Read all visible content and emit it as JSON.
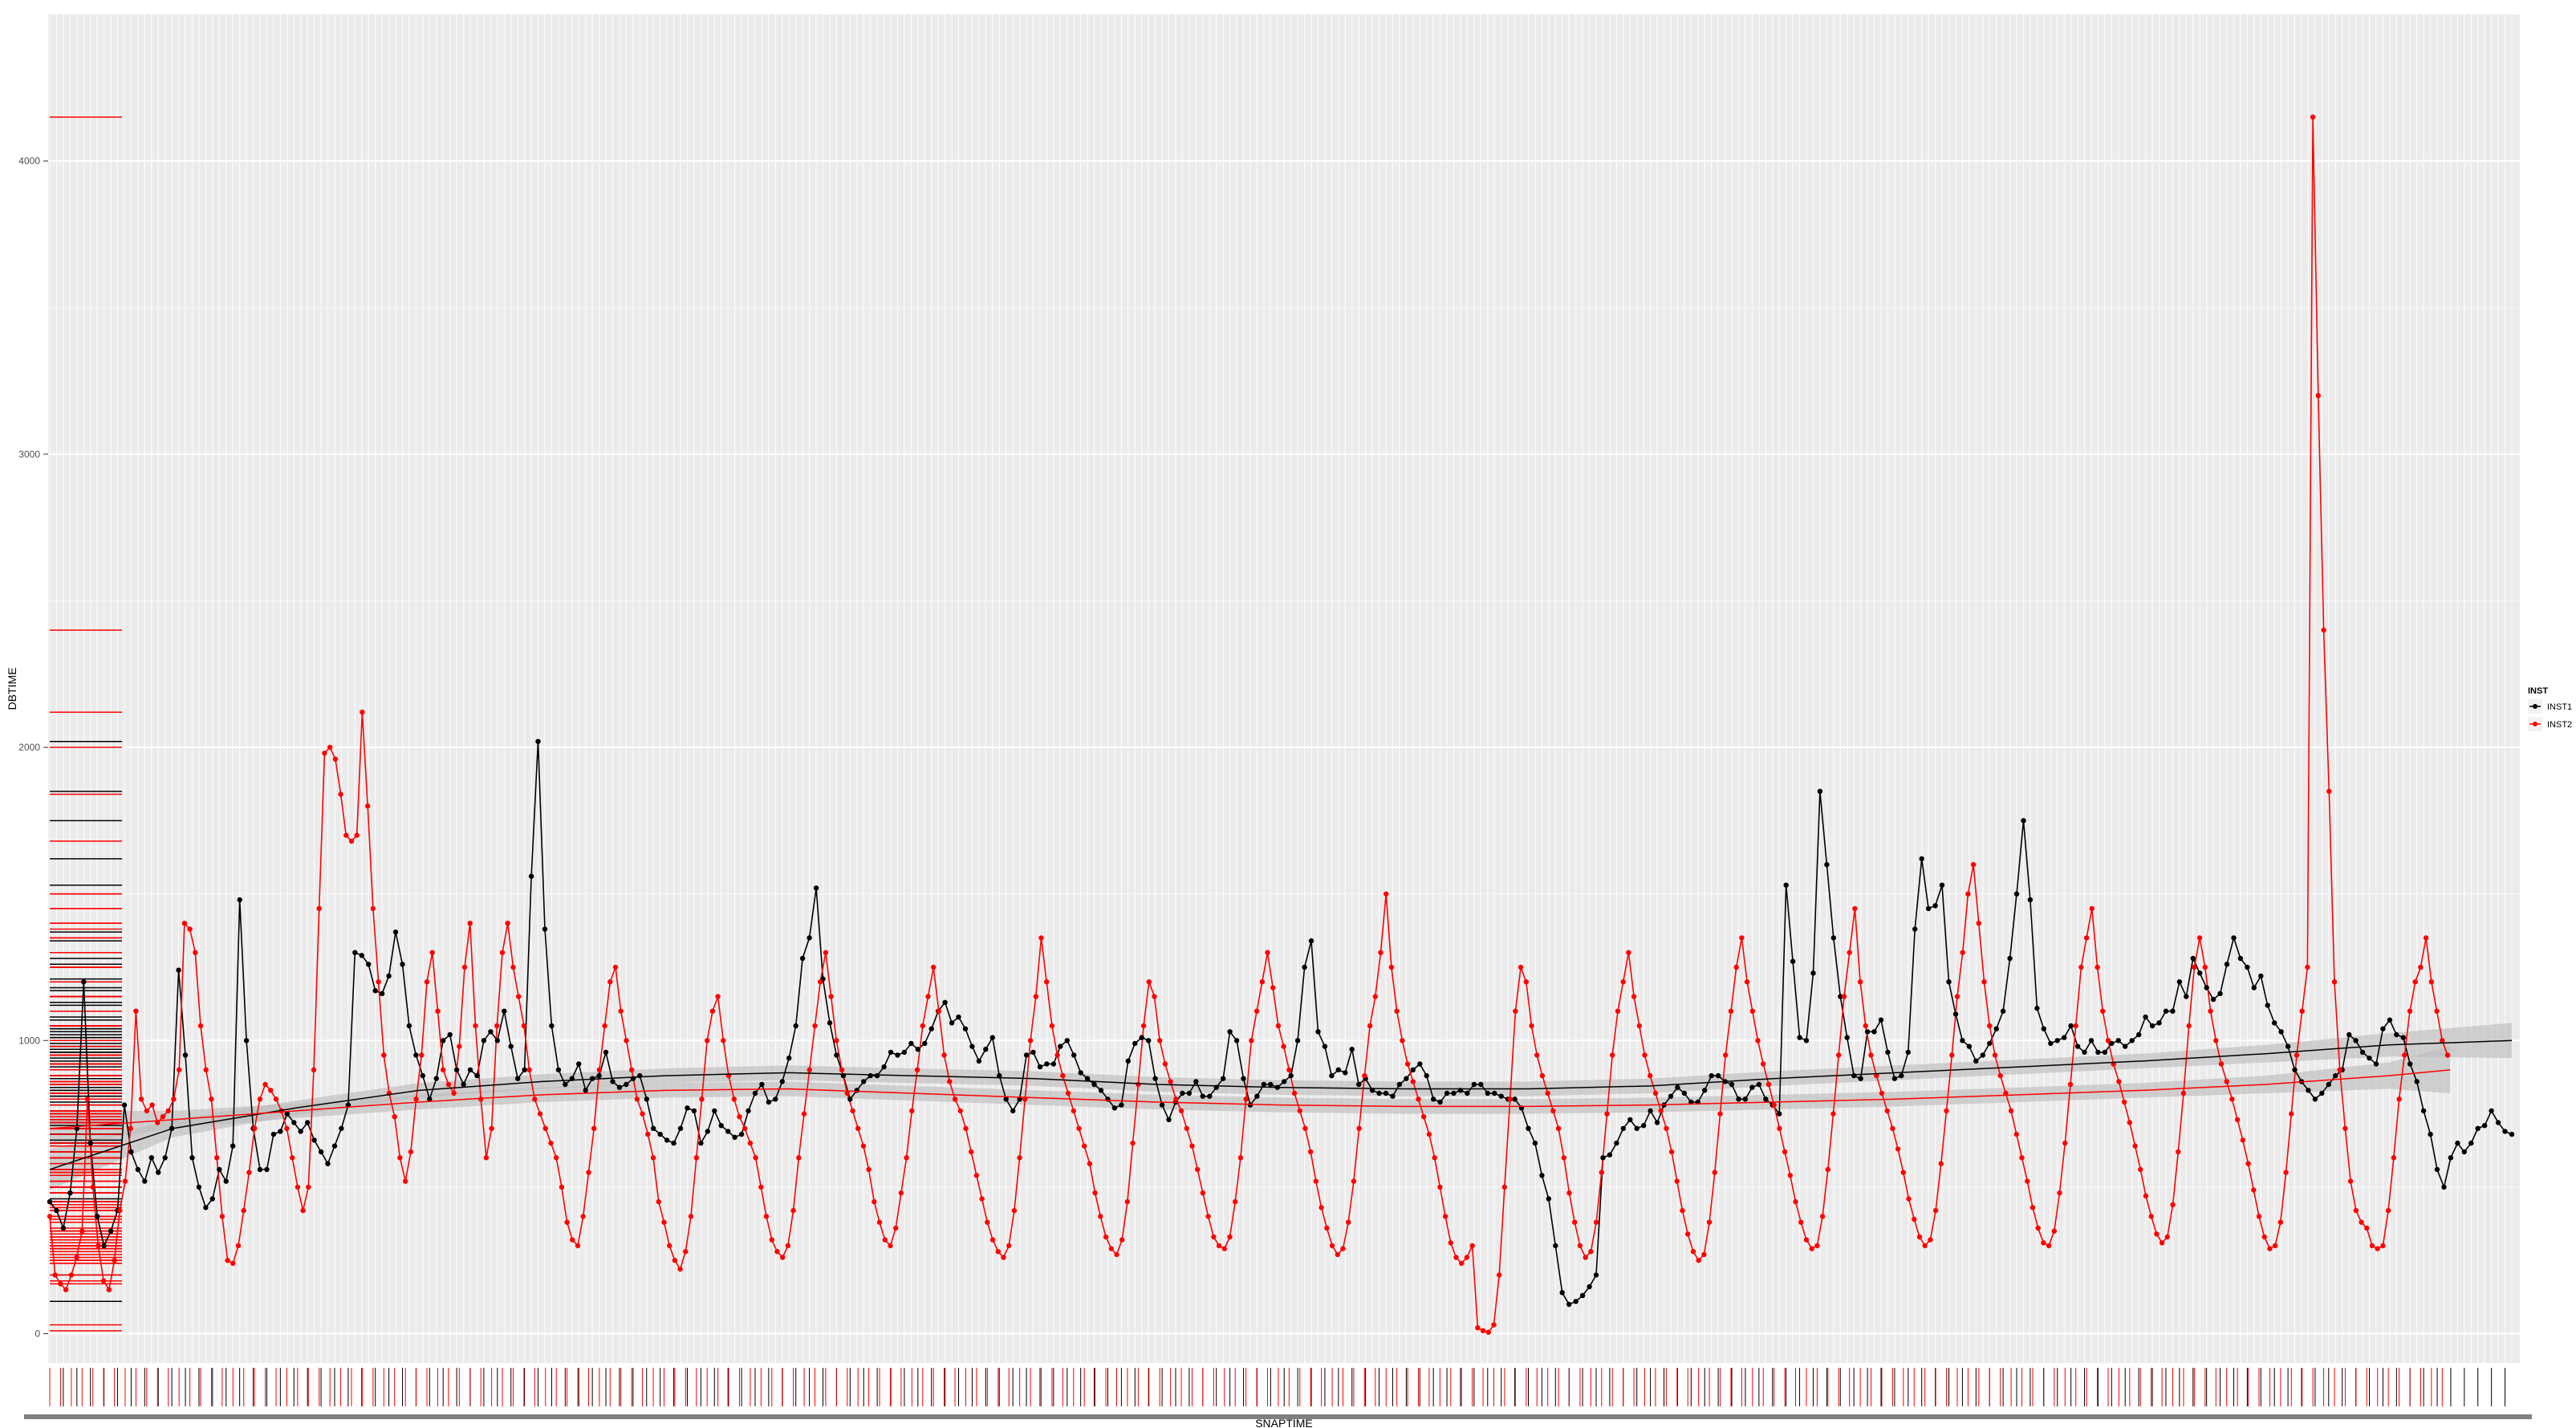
{
  "chart_data": {
    "type": "line",
    "xlabel": "SNAPTIME",
    "ylabel": "DBTIME",
    "ylim": [
      -100,
      4500
    ],
    "yticks": [
      0,
      1000,
      2000,
      3000,
      4000
    ],
    "grid": true,
    "legend_position": "right",
    "legend_title": "INST",
    "colors": {
      "INST1": "#000000",
      "INST2": "#ff0000",
      "panel": "#ebebeb",
      "smooth_band": "#bdbdbd"
    },
    "series": [
      {
        "name": "INST1",
        "color": "#000000",
        "values": [
          450,
          420,
          360,
          480,
          700,
          1200,
          650,
          400,
          300,
          350,
          420,
          780,
          620,
          560,
          520,
          600,
          550,
          600,
          700,
          1240,
          950,
          600,
          500,
          430,
          460,
          560,
          520,
          640,
          1480,
          1000,
          700,
          560,
          560,
          680,
          690,
          750,
          720,
          690,
          720,
          660,
          620,
          580,
          640,
          700,
          780,
          1300,
          1290,
          1260,
          1170,
          1160,
          1220,
          1370,
          1260,
          1050,
          950,
          880,
          800,
          870,
          1000,
          1020,
          900,
          850,
          900,
          880,
          1000,
          1030,
          1000,
          1100,
          980,
          870,
          900,
          1560,
          2020,
          1380,
          1050,
          900,
          850,
          870,
          920,
          830,
          870,
          880,
          960,
          860,
          840,
          850,
          870,
          880,
          800,
          700,
          680,
          660,
          650,
          700,
          770,
          760,
          650,
          690,
          760,
          710,
          690,
          670,
          680,
          760,
          820,
          850,
          790,
          800,
          860,
          940,
          1050,
          1280,
          1350,
          1520,
          1210,
          1060,
          950,
          880,
          800,
          830,
          860,
          880,
          880,
          910,
          960,
          950,
          960,
          990,
          970,
          990,
          1040,
          1100,
          1130,
          1060,
          1080,
          1040,
          980,
          930,
          970,
          1010,
          880,
          800,
          760,
          800,
          950,
          960,
          910,
          920,
          920,
          980,
          1000,
          950,
          890,
          870,
          850,
          830,
          800,
          770,
          780,
          930,
          990,
          1010,
          1000,
          870,
          780,
          730,
          790,
          820,
          820,
          860,
          810,
          810,
          840,
          870,
          1030,
          1000,
          870,
          780,
          810,
          850,
          850,
          840,
          860,
          880,
          1000,
          1250,
          1340,
          1030,
          980,
          880,
          900,
          890,
          970,
          850,
          870,
          830,
          820,
          820,
          810,
          850,
          870,
          900,
          920,
          880,
          800,
          790,
          820,
          820,
          830,
          820,
          850,
          850,
          820,
          820,
          810,
          800,
          800,
          770,
          700,
          650,
          540,
          460,
          300,
          140,
          100,
          110,
          130,
          160,
          200,
          600,
          610,
          650,
          700,
          730,
          700,
          710,
          760,
          720,
          780,
          810,
          840,
          820,
          790,
          790,
          830,
          880,
          880,
          860,
          850,
          800,
          800,
          840,
          850,
          800,
          780,
          750,
          1530,
          1270,
          1010,
          1000,
          1230,
          1850,
          1600,
          1350,
          1150,
          1010,
          880,
          870,
          1030,
          1030,
          1070,
          960,
          870,
          880,
          960,
          1380,
          1620,
          1450,
          1460,
          1530,
          1200,
          1090,
          1000,
          980,
          930,
          950,
          990,
          1040,
          1100,
          1280,
          1500,
          1750,
          1480,
          1110,
          1040,
          990,
          1000,
          1010,
          1050,
          980,
          960,
          1000,
          960,
          960,
          990,
          1000,
          980,
          1000,
          1020,
          1080,
          1050,
          1060,
          1100,
          1100,
          1200,
          1150,
          1280,
          1230,
          1180,
          1140,
          1160,
          1260,
          1350,
          1280,
          1250,
          1180,
          1220,
          1120,
          1060,
          1030,
          980,
          900,
          860,
          830,
          800,
          820,
          850,
          880,
          900,
          1020,
          1000,
          960,
          940,
          920,
          1040,
          1070,
          1020,
          1010,
          920,
          860,
          760,
          680,
          560,
          500,
          600,
          650,
          620,
          650,
          700,
          710,
          760,
          720,
          690,
          680
        ]
      },
      {
        "name": "INST2",
        "color": "#ff0000",
        "values": [
          400,
          200,
          170,
          150,
          200,
          260,
          350,
          800,
          500,
          300,
          180,
          150,
          250,
          420,
          520,
          700,
          1100,
          800,
          760,
          780,
          720,
          740,
          760,
          800,
          900,
          1400,
          1380,
          1300,
          1050,
          900,
          800,
          600,
          400,
          250,
          240,
          300,
          420,
          550,
          700,
          800,
          850,
          830,
          800,
          760,
          700,
          600,
          500,
          420,
          500,
          900,
          1450,
          1980,
          2000,
          1960,
          1840,
          1700,
          1680,
          1700,
          2120,
          1800,
          1450,
          1200,
          950,
          820,
          740,
          600,
          520,
          620,
          800,
          950,
          1200,
          1300,
          1100,
          900,
          850,
          820,
          980,
          1250,
          1400,
          1050,
          800,
          600,
          700,
          1050,
          1300,
          1400,
          1250,
          1150,
          1050,
          900,
          800,
          750,
          700,
          650,
          600,
          500,
          380,
          320,
          300,
          400,
          550,
          700,
          900,
          1050,
          1200,
          1250,
          1100,
          1000,
          900,
          800,
          750,
          680,
          600,
          450,
          380,
          300,
          250,
          220,
          280,
          400,
          600,
          800,
          1000,
          1100,
          1150,
          1000,
          880,
          800,
          740,
          700,
          650,
          600,
          500,
          400,
          320,
          280,
          260,
          300,
          420,
          600,
          750,
          900,
          1050,
          1200,
          1300,
          1150,
          1000,
          900,
          820,
          760,
          700,
          640,
          560,
          450,
          380,
          320,
          300,
          360,
          480,
          600,
          760,
          900,
          1050,
          1150,
          1250,
          1100,
          950,
          860,
          800,
          760,
          700,
          620,
          540,
          460,
          380,
          320,
          280,
          260,
          300,
          420,
          600,
          800,
          1000,
          1150,
          1350,
          1200,
          1050,
          950,
          880,
          820,
          760,
          700,
          640,
          580,
          480,
          400,
          330,
          290,
          270,
          320,
          450,
          650,
          850,
          1050,
          1200,
          1150,
          1000,
          920,
          860,
          800,
          760,
          700,
          640,
          560,
          480,
          400,
          330,
          300,
          290,
          330,
          450,
          600,
          800,
          1000,
          1100,
          1200,
          1300,
          1180,
          1050,
          980,
          900,
          820,
          760,
          700,
          620,
          520,
          430,
          360,
          300,
          270,
          290,
          380,
          520,
          700,
          880,
          1050,
          1150,
          1300,
          1500,
          1250,
          1100,
          1000,
          920,
          860,
          800,
          740,
          680,
          600,
          500,
          400,
          310,
          260,
          240,
          260,
          300,
          20,
          10,
          5,
          30,
          200,
          500,
          800,
          1100,
          1250,
          1200,
          1050,
          950,
          880,
          820,
          760,
          700,
          600,
          480,
          380,
          300,
          260,
          280,
          380,
          550,
          750,
          950,
          1100,
          1200,
          1300,
          1150,
          1050,
          950,
          880,
          820,
          760,
          700,
          620,
          520,
          420,
          340,
          280,
          250,
          270,
          380,
          550,
          750,
          950,
          1100,
          1250,
          1350,
          1200,
          1100,
          1000,
          920,
          850,
          780,
          700,
          620,
          540,
          450,
          380,
          320,
          290,
          300,
          400,
          560,
          750,
          950,
          1150,
          1300,
          1450,
          1200,
          1050,
          950,
          880,
          820,
          760,
          700,
          630,
          550,
          460,
          390,
          330,
          300,
          320,
          420,
          580,
          760,
          950,
          1150,
          1300,
          1500,
          1600,
          1400,
          1200,
          1050,
          950,
          880,
          820,
          760,
          680,
          600,
          520,
          430,
          360,
          310,
          300,
          350,
          480,
          650,
          850,
          1050,
          1250,
          1350,
          1450,
          1250,
          1100,
          1000,
          920,
          860,
          790,
          720,
          640,
          560,
          470,
          400,
          340,
          310,
          330,
          440,
          620,
          820,
          1050,
          1250,
          1350,
          1250,
          1100,
          1000,
          920,
          860,
          800,
          730,
          660,
          580,
          490,
          400,
          330,
          290,
          300,
          380,
          550,
          750,
          950,
          1100,
          1250,
          4150,
          3200,
          2400,
          1850,
          1200,
          900,
          700,
          520,
          420,
          380,
          360,
          300,
          290,
          300,
          420,
          600,
          800,
          950,
          1100,
          1200,
          1250,
          1350,
          1200,
          1100,
          1000,
          950
        ]
      }
    ],
    "smooth": [
      {
        "name": "INST1",
        "x": [
          0,
          0.05,
          0.1,
          0.15,
          0.2,
          0.25,
          0.3,
          0.35,
          0.4,
          0.45,
          0.5,
          0.55,
          0.6,
          0.65,
          0.7,
          0.75,
          0.8,
          0.85,
          0.9,
          0.95,
          1.0
        ],
        "y": [
          560,
          700,
          770,
          830,
          860,
          880,
          890,
          880,
          870,
          850,
          840,
          835,
          835,
          845,
          870,
          890,
          910,
          930,
          955,
          985,
          1000
        ],
        "se": [
          70,
          30,
          25,
          25,
          25,
          25,
          25,
          25,
          25,
          25,
          25,
          25,
          25,
          25,
          25,
          25,
          25,
          25,
          30,
          40,
          60
        ]
      },
      {
        "name": "INST2",
        "x": [
          0,
          0.05,
          0.1,
          0.15,
          0.2,
          0.25,
          0.3,
          0.35,
          0.4,
          0.45,
          0.5,
          0.55,
          0.6,
          0.65,
          0.7,
          0.75,
          0.8,
          0.85,
          0.9,
          0.95,
          0.975
        ],
        "y": [
          700,
          730,
          760,
          790,
          815,
          830,
          835,
          820,
          805,
          790,
          780,
          775,
          775,
          780,
          790,
          800,
          815,
          830,
          850,
          880,
          900
        ],
        "se": [
          60,
          30,
          25,
          25,
          25,
          25,
          25,
          25,
          25,
          25,
          25,
          25,
          25,
          25,
          25,
          25,
          25,
          25,
          30,
          45,
          80
        ]
      }
    ]
  }
}
